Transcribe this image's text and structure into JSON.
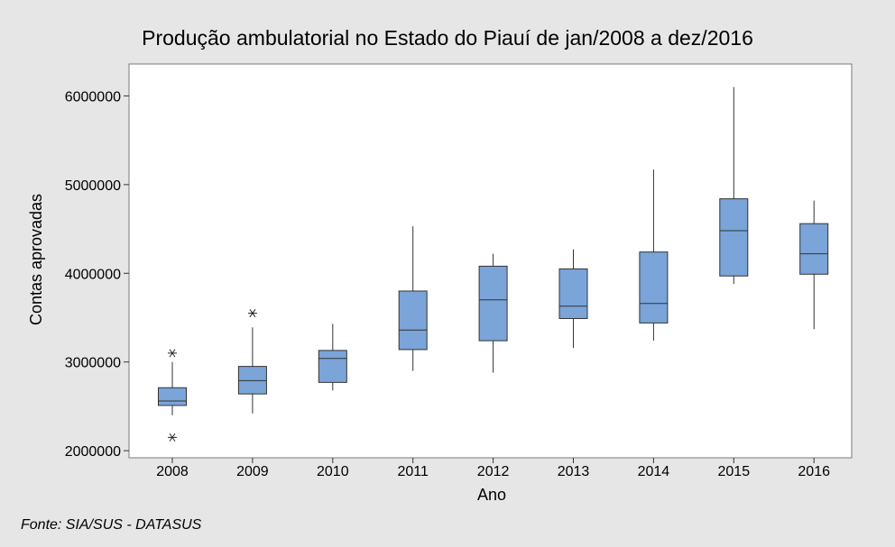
{
  "chart_data": {
    "type": "boxplot",
    "title": "Produção ambulatorial no Estado do Piauí de jan/2008 a dez/2016",
    "xlabel": "Ano",
    "ylabel": "Contas aprovadas",
    "source_note": "Fonte: SIA/SUS - DATASUS",
    "ylim": [
      1920000,
      6360000
    ],
    "yticks": [
      2000000,
      3000000,
      4000000,
      5000000,
      6000000
    ],
    "ytick_labels": [
      "2000000",
      "3000000",
      "4000000",
      "5000000",
      "6000000"
    ],
    "grid": false,
    "box_color": "#7ba4d8",
    "outlier_marker": "asterisk",
    "categories": [
      "2008",
      "2009",
      "2010",
      "2011",
      "2012",
      "2013",
      "2014",
      "2015",
      "2016"
    ],
    "boxes": [
      {
        "category": "2008",
        "whisker_low": 2400000,
        "q1": 2510000,
        "median": 2560000,
        "q3": 2710000,
        "whisker_high": 3000000,
        "outliers": [
          3100000,
          2150000
        ]
      },
      {
        "category": "2009",
        "whisker_low": 2420000,
        "q1": 2640000,
        "median": 2790000,
        "q3": 2950000,
        "whisker_high": 3390000,
        "outliers": [
          3550000
        ]
      },
      {
        "category": "2010",
        "whisker_low": 2680000,
        "q1": 2770000,
        "median": 3040000,
        "q3": 3130000,
        "whisker_high": 3430000,
        "outliers": []
      },
      {
        "category": "2011",
        "whisker_low": 2900000,
        "q1": 3140000,
        "median": 3360000,
        "q3": 3800000,
        "whisker_high": 4530000,
        "outliers": []
      },
      {
        "category": "2012",
        "whisker_low": 2880000,
        "q1": 3240000,
        "median": 3700000,
        "q3": 4080000,
        "whisker_high": 4220000,
        "outliers": []
      },
      {
        "category": "2013",
        "whisker_low": 3160000,
        "q1": 3490000,
        "median": 3630000,
        "q3": 4050000,
        "whisker_high": 4270000,
        "outliers": []
      },
      {
        "category": "2014",
        "whisker_low": 3240000,
        "q1": 3440000,
        "median": 3660000,
        "q3": 4240000,
        "whisker_high": 5170000,
        "outliers": []
      },
      {
        "category": "2015",
        "whisker_low": 3880000,
        "q1": 3970000,
        "median": 4480000,
        "q3": 4840000,
        "whisker_high": 6100000,
        "outliers": []
      },
      {
        "category": "2016",
        "whisker_low": 3370000,
        "q1": 3990000,
        "median": 4220000,
        "q3": 4560000,
        "whisker_high": 4820000,
        "outliers": []
      }
    ]
  }
}
